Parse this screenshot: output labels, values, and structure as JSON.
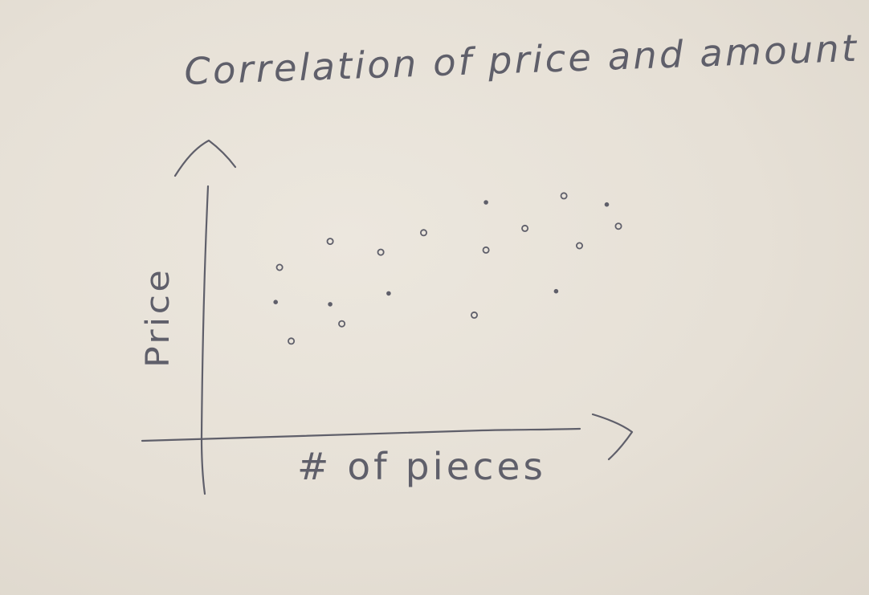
{
  "colors": {
    "paper": "#e8e3da",
    "ink": "#5f5f6a"
  },
  "chart_data": {
    "type": "scatter",
    "title": "Correlation of price and amount",
    "xlabel": "# of pieces",
    "ylabel": "Price",
    "xlim": [
      0,
      10
    ],
    "ylim": [
      0,
      10
    ],
    "grid": false,
    "series": [
      {
        "points": [
          {
            "x": 1.3,
            "y": 6.0
          },
          {
            "x": 1.2,
            "y": 4.4
          },
          {
            "x": 1.6,
            "y": 2.6
          },
          {
            "x": 2.6,
            "y": 7.2
          },
          {
            "x": 2.6,
            "y": 4.3
          },
          {
            "x": 2.9,
            "y": 3.4
          },
          {
            "x": 3.9,
            "y": 6.7
          },
          {
            "x": 4.1,
            "y": 4.8
          },
          {
            "x": 5.0,
            "y": 7.6
          },
          {
            "x": 6.3,
            "y": 3.8
          },
          {
            "x": 6.6,
            "y": 9.0
          },
          {
            "x": 6.6,
            "y": 6.8
          },
          {
            "x": 7.6,
            "y": 7.8
          },
          {
            "x": 8.4,
            "y": 4.9
          },
          {
            "x": 8.6,
            "y": 9.3
          },
          {
            "x": 9.0,
            "y": 7.0
          },
          {
            "x": 9.7,
            "y": 8.9
          },
          {
            "x": 10.0,
            "y": 7.9
          }
        ]
      }
    ]
  }
}
